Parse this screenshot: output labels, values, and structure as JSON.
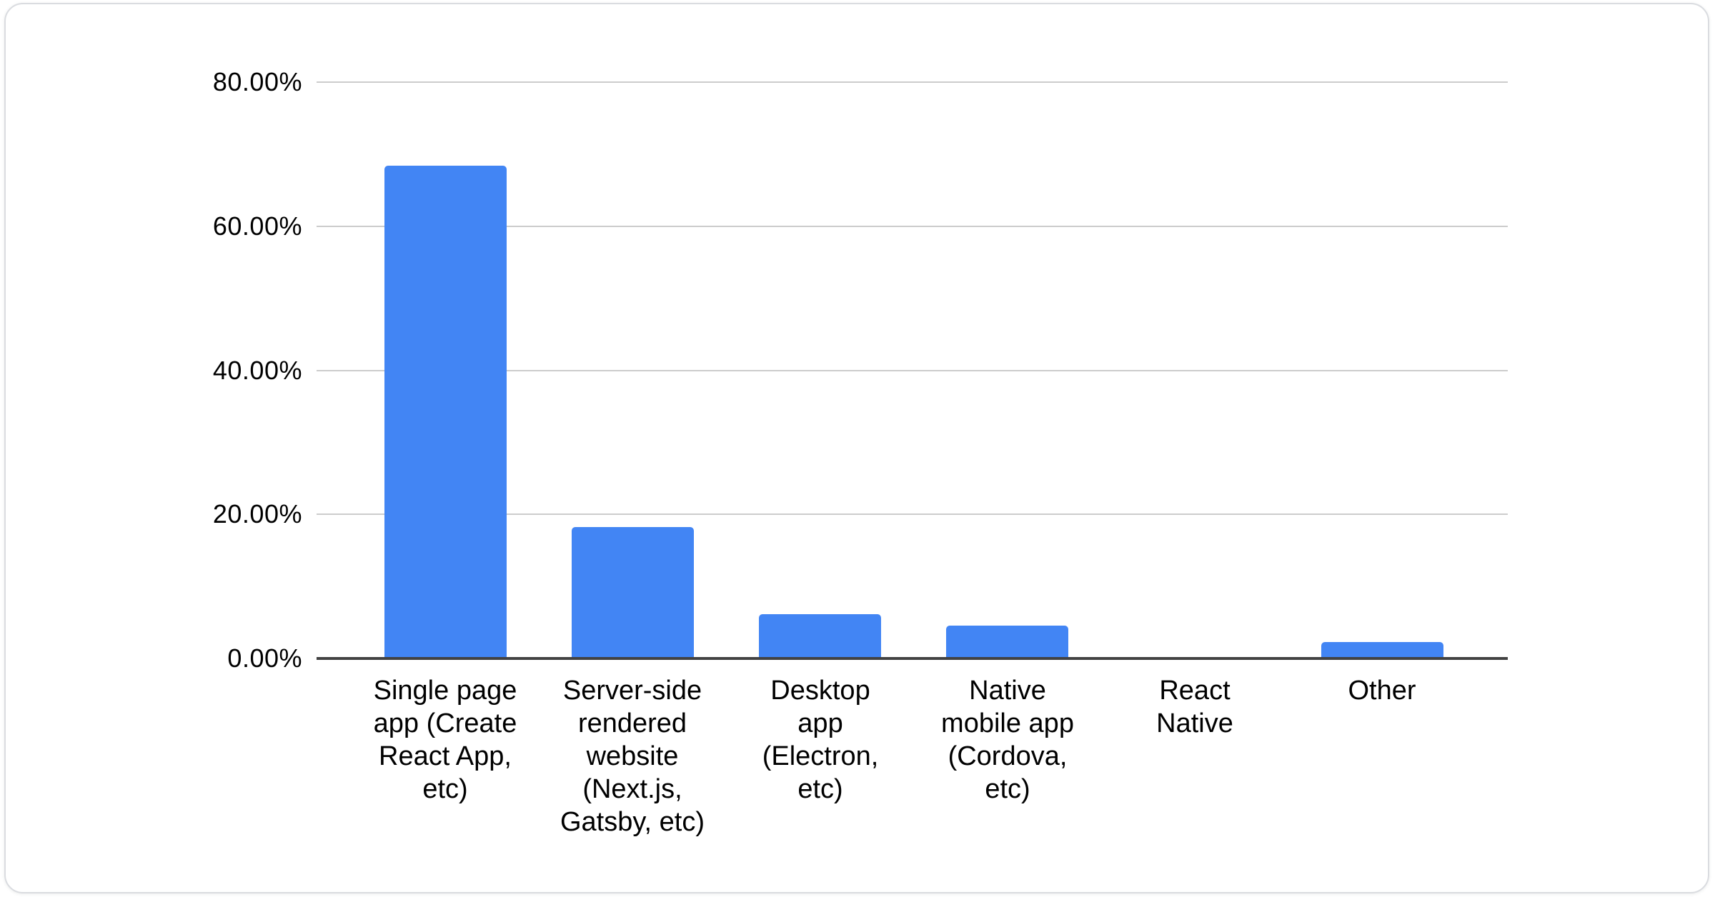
{
  "chart_data": {
    "type": "bar",
    "title": "",
    "xlabel": "",
    "ylabel": "",
    "legend_position": "none",
    "grid": true,
    "ylim": [
      0,
      80
    ],
    "unit": "%",
    "categories": [
      "Single page app (Create React App, etc)",
      "Server-side rendered website (Next.js, Gatsby, etc)",
      "Desktop app (Electron, etc)",
      "Native mobile app (Cordova, etc)",
      "React Native",
      "Other"
    ],
    "category_labels_wrapped": [
      "Single page\napp (Create\nReact App,\netc)",
      "Server-side\nrendered\nwebsite\n(Next.js,\nGatsby, etc)",
      "Desktop\napp\n(Electron,\netc)",
      "Native\nmobile app\n(Cordova,\netc)",
      "React\nNative",
      "Other"
    ],
    "values": [
      68.4,
      18.2,
      6.1,
      4.6,
      0,
      2.3
    ],
    "y_ticks": [
      {
        "label": "80.00%",
        "value": 80
      },
      {
        "label": "60.00%",
        "value": 60
      },
      {
        "label": "40.00%",
        "value": 40
      },
      {
        "label": "20.00%",
        "value": 20
      },
      {
        "label": "0.00%",
        "value": 0
      }
    ],
    "colors": {
      "bar": "#4285f4",
      "gridline": "#cccccc",
      "axis_line": "#424242",
      "tick_text": "#000000",
      "category_text": "#000000",
      "card_background": "#ffffff",
      "card_border": "#dadce0",
      "page_background": "#ffffff"
    }
  }
}
